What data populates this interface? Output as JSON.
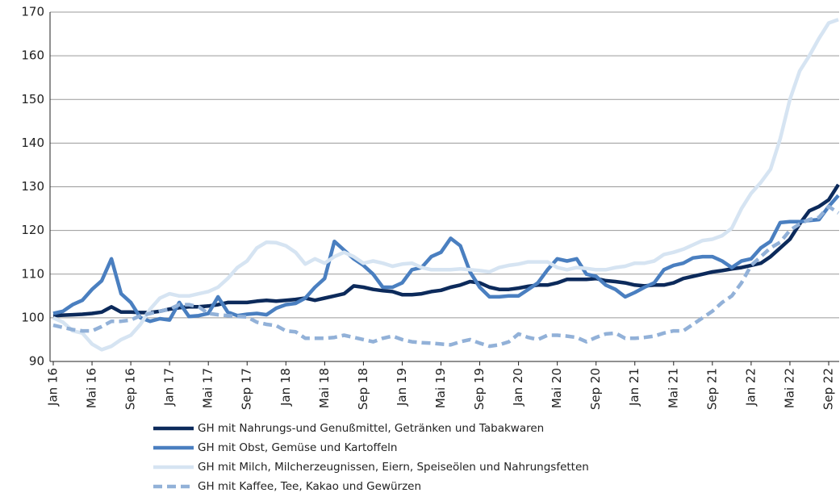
{
  "chart_data": {
    "type": "line",
    "categories": [
      "Jan 16",
      null,
      null,
      null,
      "Mai 16",
      null,
      null,
      null,
      "Sep 16",
      null,
      null,
      null,
      "Jan 17",
      null,
      null,
      null,
      "Mai 17",
      null,
      null,
      null,
      "Sep 17",
      null,
      null,
      null,
      "Jan 18",
      null,
      null,
      null,
      "Mai 18",
      null,
      null,
      null,
      "Sep 18",
      null,
      null,
      null,
      "Jan 19",
      null,
      null,
      null,
      "Mai 19",
      null,
      null,
      null,
      "Sep 19",
      null,
      null,
      null,
      "Jan 20",
      null,
      null,
      null,
      "Mai 20",
      null,
      null,
      null,
      "Sep 20",
      null,
      null,
      null,
      "Jan 21",
      null,
      null,
      null,
      "Mai 21",
      null,
      null,
      null,
      "Sep 21",
      null,
      null,
      null,
      "Jan 22",
      null,
      null,
      null,
      "Mai 22",
      null,
      null,
      null,
      "Sep 22",
      null
    ],
    "ylim": [
      90,
      170
    ],
    "yticks": [
      90,
      100,
      110,
      120,
      130,
      140,
      150,
      160,
      170
    ],
    "grid": true,
    "series": [
      {
        "name": "GH mit Nahrungs-und Genußmittel, Getränken und Tabakwaren",
        "color": "#0c2a5b",
        "dashed": false,
        "values": [
          100.5,
          100.6,
          100.7,
          100.8,
          101.0,
          101.3,
          102.5,
          101.3,
          101.3,
          101.2,
          101.2,
          101.5,
          102.0,
          102.3,
          102.5,
          102.5,
          102.7,
          103.0,
          103.5,
          103.5,
          103.5,
          103.8,
          104.0,
          103.8,
          104.0,
          104.2,
          104.5,
          104.0,
          104.5,
          105.0,
          105.5,
          107.3,
          107.0,
          106.5,
          106.2,
          106.0,
          105.3,
          105.3,
          105.5,
          106.0,
          106.3,
          107.0,
          107.5,
          108.3,
          108.0,
          107.0,
          106.5,
          106.5,
          106.8,
          107.2,
          107.5,
          107.5,
          108.0,
          108.8,
          108.8,
          108.8,
          109.0,
          108.5,
          108.3,
          108.0,
          107.5,
          107.3,
          107.5,
          107.5,
          108.0,
          109.0,
          109.5,
          110.0,
          110.5,
          110.8,
          111.2,
          111.5,
          112.0,
          112.5,
          114.0,
          116.0,
          118.0,
          121.5,
          124.5,
          125.5,
          127.0,
          130.5
        ]
      },
      {
        "name": "GH mit Obst, Gemüse und Kartoffeln",
        "color": "#4a7fc0",
        "dashed": false,
        "values": [
          101,
          101.5,
          103,
          104,
          106.5,
          108.5,
          113.5,
          105.5,
          103.5,
          100,
          99.2,
          99.8,
          99.5,
          103.5,
          100.3,
          100.5,
          101,
          104.8,
          101.3,
          100.5,
          100.8,
          101,
          100.7,
          102.2,
          103,
          103.3,
          104.5,
          107,
          109,
          117.5,
          115.5,
          113.5,
          112,
          110,
          107,
          107,
          108,
          111,
          111.5,
          114,
          115,
          118.2,
          116.5,
          110.5,
          107,
          104.8,
          104.8,
          105,
          105,
          106.5,
          108,
          111,
          113.5,
          113,
          113.5,
          110,
          109.5,
          107.5,
          106.5,
          104.8,
          105.8,
          107,
          108,
          111,
          112,
          112.5,
          113.7,
          114,
          114,
          113,
          111.5,
          113,
          113.5,
          116,
          117.5,
          121.8,
          122,
          122,
          122.3,
          122.5,
          125.5,
          128
        ]
      },
      {
        "name": "GH mit Milch, Milcherzeugnissen, Eiern, Speiseölen und Nahrungsfetten",
        "color": "#d6e4f2",
        "dashed": false,
        "values": [
          100,
          99,
          97,
          96.5,
          94,
          92.7,
          93.5,
          95,
          96,
          98.5,
          102,
          104.5,
          105.5,
          105,
          105,
          105.5,
          106,
          107,
          109,
          111.5,
          113,
          116,
          117.3,
          117.2,
          116.5,
          115,
          112.3,
          113.5,
          112.5,
          114,
          115,
          114,
          112.5,
          113,
          112.5,
          111.8,
          112.3,
          112.5,
          111.5,
          111,
          111,
          111,
          111.2,
          111,
          110.8,
          110.5,
          111.5,
          112,
          112.3,
          112.8,
          112.8,
          112.8,
          111.5,
          111,
          111.5,
          111.3,
          111,
          111,
          111.5,
          111.8,
          112.5,
          112.5,
          113,
          114.5,
          115,
          115.7,
          116.7,
          117.7,
          118,
          118.8,
          120.5,
          125,
          128.5,
          131,
          134,
          141,
          150,
          156.5,
          160,
          164,
          167.5,
          168.3
        ]
      },
      {
        "name": "GH mit Kaffee, Tee, Kakao und Gewürzen",
        "color": "#92b1d8",
        "dashed": true,
        "values": [
          98.3,
          97.8,
          97.3,
          97,
          97,
          98,
          99.2,
          99.2,
          99.5,
          100.5,
          101,
          101.5,
          102,
          103,
          103,
          102.5,
          101,
          100.7,
          100.5,
          100.3,
          100.2,
          99,
          98.5,
          98.2,
          97,
          96.8,
          95.3,
          95.3,
          95.3,
          95.5,
          96,
          95.5,
          95,
          94.5,
          95.3,
          95.8,
          95,
          94.5,
          94.3,
          94.2,
          94,
          93.8,
          94.5,
          95,
          94.2,
          93.5,
          93.8,
          94.5,
          96.3,
          95.5,
          95,
          96,
          96,
          95.8,
          95.5,
          94.5,
          95.5,
          96.3,
          96.5,
          95.3,
          95.3,
          95.5,
          95.8,
          96.5,
          97,
          97,
          98.5,
          100,
          101.5,
          103.5,
          105,
          108,
          112,
          114,
          116,
          117.3,
          120,
          121.5,
          122.5,
          123,
          125.5,
          124
        ]
      }
    ]
  }
}
